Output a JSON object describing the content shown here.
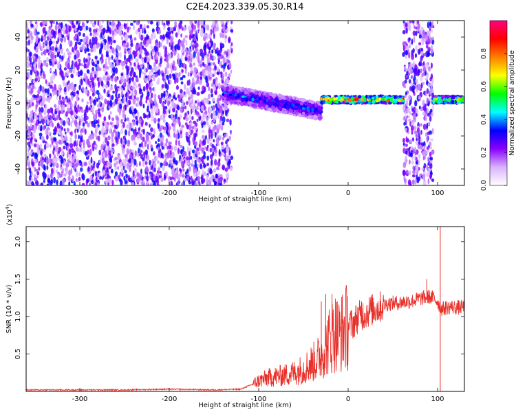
{
  "title": "C2E4.2023.339.05.30.R14",
  "chart_data": [
    {
      "type": "heatmap",
      "xlabel": "Height of straight line (km)",
      "ylabel": "Frequency (Hz)",
      "xlim": [
        -360,
        130
      ],
      "ylim": [
        -50,
        50
      ],
      "xticks": [
        -300,
        -200,
        -100,
        0,
        100
      ],
      "yticks": [
        -40,
        -20,
        0,
        20,
        40
      ],
      "grid": false,
      "colorbar": {
        "label": "Normalized spectral amplitude",
        "range": [
          0.0,
          1.0
        ],
        "ticks": [
          "0.0",
          "0.2",
          "0.4",
          "0.6",
          "0.8"
        ],
        "colormap": [
          "#ffffff",
          "#d9b3ff",
          "#8a00ff",
          "#0000ff",
          "#00ffff",
          "#00ff00",
          "#ffff00",
          "#ff7f00",
          "#ff0000",
          "#ff0080"
        ]
      },
      "structure": [
        {
          "x_range": [
            -360,
            -130
          ],
          "freq_range": [
            -50,
            50
          ],
          "amplitude": 0.05,
          "pattern": "broadband noise"
        },
        {
          "x_range": [
            -140,
            -30
          ],
          "center_freq": [
            6,
            -5
          ],
          "width_hz": 10,
          "amplitude": 0.4,
          "pattern": "descending band"
        },
        {
          "x_range": [
            -30,
            62
          ],
          "center_freq": [
            2,
            2
          ],
          "width_hz": 4,
          "amplitude": 0.9,
          "pattern": "narrow line"
        },
        {
          "x_range": [
            62,
            95
          ],
          "freq_range": [
            -50,
            50
          ],
          "amplitude": 0.05,
          "pattern": "broadband noise"
        },
        {
          "x_range": [
            95,
            130
          ],
          "center_freq": [
            2,
            2
          ],
          "width_hz": 4,
          "amplitude": 0.8,
          "pattern": "narrow line"
        }
      ]
    },
    {
      "type": "line",
      "xlabel": "Height of straight line (km)",
      "ylabel": "SNR (10 * v/v)",
      "yscale_label": "(x10",
      "yscale_exponent": "4",
      "yscale_suffix": ")",
      "xlim": [
        -360,
        130
      ],
      "ylim": [
        0,
        2.2
      ],
      "xticks": [
        -300,
        -200,
        -100,
        0,
        100
      ],
      "yticks": [
        0.5,
        1.0,
        1.5,
        2.0
      ],
      "ytick_labels": [
        "0.5",
        "1.0",
        "1.5",
        "2.0"
      ],
      "grid": false,
      "series": [
        {
          "color": "#e8302a",
          "x": [
            -360,
            -300,
            -250,
            -200,
            -150,
            -120,
            -110,
            -100,
            -90,
            -80,
            -70,
            -60,
            -50,
            -40,
            -35,
            -30,
            -25,
            -20,
            -15,
            -10,
            -5,
            0,
            5,
            10,
            15,
            20,
            25,
            30,
            35,
            40,
            45,
            50,
            55,
            60,
            65,
            70,
            75,
            80,
            85,
            90,
            95,
            100,
            103,
            105,
            110,
            115,
            120,
            125,
            130
          ],
          "values": [
            0.02,
            0.02,
            0.02,
            0.03,
            0.02,
            0.03,
            0.08,
            0.14,
            0.18,
            0.2,
            0.22,
            0.25,
            0.3,
            0.38,
            0.42,
            0.5,
            0.6,
            0.7,
            0.8,
            0.75,
            0.82,
            0.88,
            0.9,
            0.98,
            1.02,
            1.05,
            1.08,
            1.1,
            1.12,
            1.15,
            1.17,
            1.18,
            1.18,
            1.19,
            1.2,
            1.2,
            1.22,
            1.24,
            1.25,
            1.26,
            1.25,
            1.2,
            1.12,
            1.1,
            1.12,
            1.13,
            1.12,
            1.12,
            1.13
          ],
          "spikes": [
            [
              -30,
              1.2
            ],
            [
              -25,
              1.3
            ],
            [
              -18,
              1.3
            ],
            [
              15,
              1.2
            ],
            [
              88,
              1.5
            ],
            [
              103,
              2.2
            ],
            [
              103,
              0.0
            ]
          ]
        }
      ]
    }
  ]
}
